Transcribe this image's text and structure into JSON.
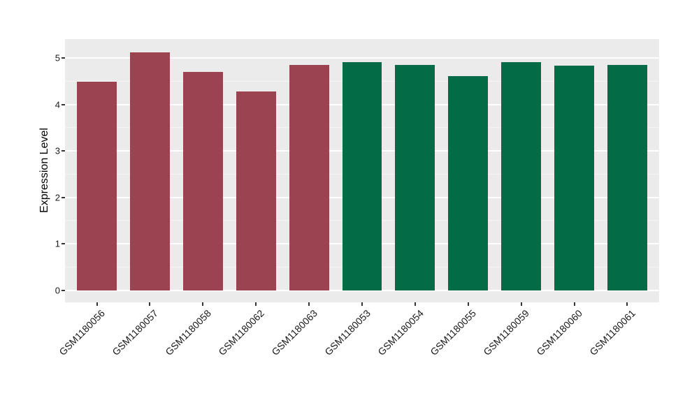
{
  "chart_data": {
    "type": "bar",
    "title": "",
    "xlabel": "",
    "ylabel": "Expression Level",
    "categories": [
      "GSM1180056",
      "GSM1180057",
      "GSM1180058",
      "GSM1180062",
      "GSM1180063",
      "GSM1180053",
      "GSM1180054",
      "GSM1180055",
      "GSM1180059",
      "GSM1180060",
      "GSM1180061"
    ],
    "values": [
      4.5,
      5.13,
      4.7,
      4.28,
      4.85,
      4.91,
      4.85,
      4.62,
      4.92,
      4.84,
      4.86
    ],
    "bar_colors": [
      "#9B4350",
      "#9B4350",
      "#9B4350",
      "#9B4350",
      "#9B4350",
      "#036B45",
      "#036B45",
      "#036B45",
      "#036B45",
      "#036B45",
      "#036B45"
    ],
    "group_color_red": "#9B4350",
    "group_color_green": "#036B45",
    "yticks": [
      0,
      1,
      2,
      3,
      4,
      5
    ],
    "ylim": [
      -0.26,
      5.41
    ],
    "grid": "major-and-minor-horizontal",
    "legend": "none",
    "panel_background": "#EBEBEB",
    "gridline_color": "#FFFFFF",
    "tick_mark_color": "#333333",
    "x_expand": 0.6,
    "bar_width_frac": 0.75
  }
}
